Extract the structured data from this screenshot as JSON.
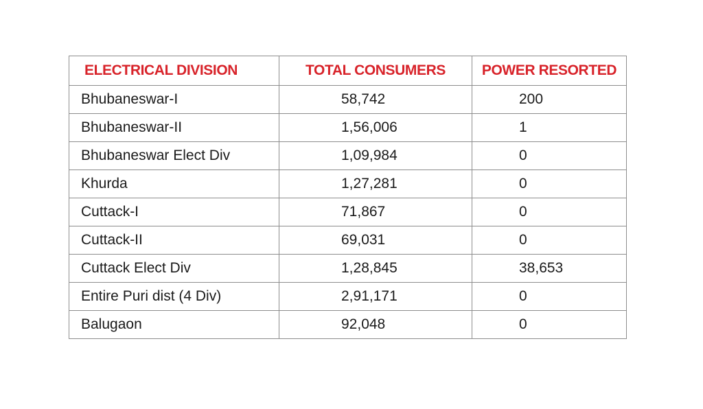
{
  "table": {
    "headers": {
      "division": "ELECTRICAL DIVISION",
      "consumers": "TOTAL CONSUMERS",
      "restored": "POWER RESORTED"
    },
    "header_color": "#d8232a",
    "rows": [
      {
        "division": "Bhubaneswar-I",
        "consumers": "58,742",
        "restored": "200"
      },
      {
        "division": "Bhubaneswar-II",
        "consumers": "1,56,006",
        "restored": "1"
      },
      {
        "division": "Bhubaneswar Elect Div",
        "consumers": "1,09,984",
        "restored": "0"
      },
      {
        "division": "Khurda",
        "consumers": "1,27,281",
        "restored": "0"
      },
      {
        "division": "Cuttack-I",
        "consumers": "71,867",
        "restored": "0"
      },
      {
        "division": "Cuttack-II",
        "consumers": "69,031",
        "restored": "0"
      },
      {
        "division": "Cuttack Elect Div",
        "consumers": "1,28,845",
        "restored": "38,653"
      },
      {
        "division": "Entire Puri dist (4 Div)",
        "consumers": "2,91,171",
        "restored": "0"
      },
      {
        "division": "Balugaon",
        "consumers": "92,048",
        "restored": "0"
      }
    ]
  }
}
